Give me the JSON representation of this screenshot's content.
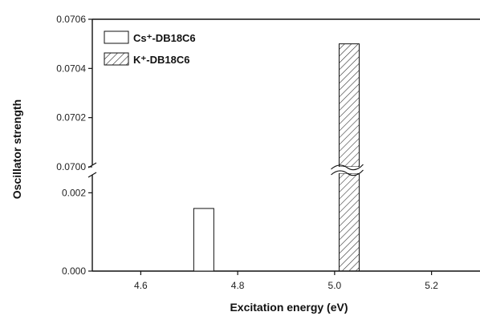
{
  "chart_data": {
    "type": "bar",
    "xlabel": "Excitation energy (eV)",
    "ylabel": "Oscillator strength",
    "x_ticks": [
      "4.6",
      "4.8",
      "5.0",
      "5.2"
    ],
    "x_tick_values": [
      4.6,
      4.8,
      5.0,
      5.2
    ],
    "xlim": [
      4.5,
      5.3
    ],
    "y_axis_break": true,
    "y_lower_segment": {
      "ylim": [
        0.0,
        0.0025
      ],
      "ticks": [
        "0.000",
        "0.002"
      ],
      "tick_values": [
        0.0,
        0.002
      ]
    },
    "y_upper_segment": {
      "ylim": [
        0.07,
        0.0706
      ],
      "ticks": [
        "0.0700",
        "0.0702",
        "0.0704",
        "0.0706"
      ],
      "tick_values": [
        0.07,
        0.0702,
        0.0704,
        0.0706
      ]
    },
    "series": [
      {
        "name": "Cs⁺-DB18C6",
        "fill": "open",
        "x": [
          4.73
        ],
        "values": [
          0.0016
        ]
      },
      {
        "name": "K⁺-DB18C6",
        "fill": "hatched",
        "x": [
          5.03
        ],
        "values": [
          0.0705
        ]
      }
    ],
    "legend_position": "top-left",
    "colors": {
      "axis": "#111111",
      "bar_stroke": "#111111",
      "background": "#ffffff"
    }
  }
}
